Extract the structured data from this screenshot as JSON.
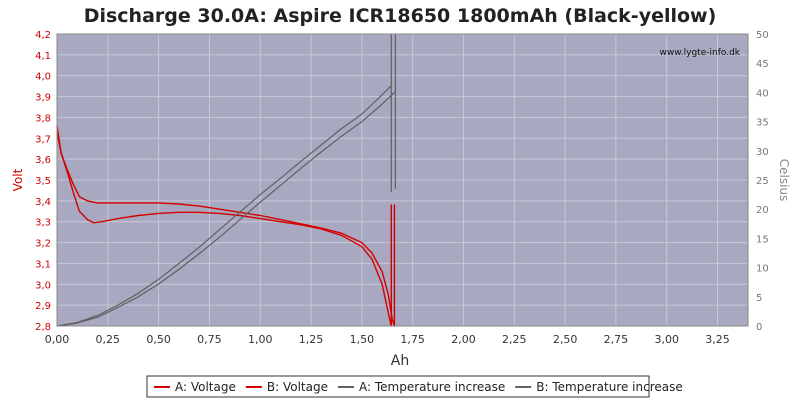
{
  "chart_data": {
    "type": "line",
    "title": "Discharge 30.0A: Aspire ICR18650 1800mAh (Black-yellow)",
    "watermark": "www.lygte-info.dk",
    "xlabel": "Ah",
    "ylabel_left": "Volt",
    "ylabel_right": "Celsius",
    "xlim": [
      0,
      3.4
    ],
    "ylim_left": [
      2.8,
      4.2
    ],
    "ylim_right": [
      0,
      50
    ],
    "x_ticks": [
      "0,00",
      "0,25",
      "0,50",
      "0,75",
      "1,00",
      "1,25",
      "1,50",
      "1,75",
      "2,00",
      "2,25",
      "2,50",
      "2,75",
      "3,00",
      "3,25"
    ],
    "y_left_ticks": [
      "2,8",
      "2,9",
      "3,0",
      "3,1",
      "3,2",
      "3,3",
      "3,4",
      "3,5",
      "3,6",
      "3,7",
      "3,8",
      "3,9",
      "4,0",
      "4,1",
      "4,2"
    ],
    "y_right_ticks": [
      "0",
      "5",
      "10",
      "15",
      "20",
      "25",
      "30",
      "35",
      "40",
      "45",
      "50"
    ],
    "grid": true,
    "legend_position": "bottom",
    "colors": {
      "plot_background": "#a8a8c0",
      "grid": "#c8c8d8",
      "voltage": "#d40000",
      "temperature": "#606060",
      "left_axis": "#cc0000",
      "right_axis": "#777777"
    },
    "series": [
      {
        "name": "A: Voltage",
        "axis": "left",
        "x": [
          0.0,
          0.02,
          0.05,
          0.08,
          0.11,
          0.15,
          0.18,
          0.22,
          0.3,
          0.4,
          0.5,
          0.6,
          0.7,
          0.8,
          0.9,
          1.0,
          1.1,
          1.2,
          1.3,
          1.4,
          1.5,
          1.55,
          1.6,
          1.62,
          1.64,
          1.645,
          1.645,
          1.645
        ],
        "y": [
          3.73,
          3.63,
          3.54,
          3.44,
          3.35,
          3.31,
          3.295,
          3.3,
          3.315,
          3.33,
          3.34,
          3.345,
          3.345,
          3.34,
          3.33,
          3.315,
          3.3,
          3.285,
          3.265,
          3.235,
          3.18,
          3.12,
          3.0,
          2.91,
          2.82,
          2.8,
          3.38,
          2.8
        ]
      },
      {
        "name": "B: Voltage",
        "axis": "left",
        "x": [
          0.0,
          0.02,
          0.05,
          0.08,
          0.11,
          0.15,
          0.2,
          0.3,
          0.4,
          0.5,
          0.6,
          0.7,
          0.8,
          0.9,
          1.0,
          1.1,
          1.2,
          1.3,
          1.4,
          1.5,
          1.55,
          1.6,
          1.63,
          1.65,
          1.66,
          1.66,
          1.66
        ],
        "y": [
          3.76,
          3.63,
          3.55,
          3.48,
          3.42,
          3.4,
          3.39,
          3.39,
          3.39,
          3.39,
          3.385,
          3.375,
          3.36,
          3.345,
          3.33,
          3.31,
          3.29,
          3.27,
          3.245,
          3.2,
          3.15,
          3.06,
          2.95,
          2.83,
          2.8,
          3.38,
          2.8
        ]
      },
      {
        "name": "A: Temperature increase",
        "axis": "right",
        "x": [
          0.0,
          0.1,
          0.2,
          0.3,
          0.4,
          0.5,
          0.6,
          0.7,
          0.8,
          0.9,
          1.0,
          1.1,
          1.2,
          1.3,
          1.4,
          1.5,
          1.6,
          1.64,
          1.645,
          1.645,
          1.645
        ],
        "y": [
          0.0,
          0.6,
          1.8,
          3.6,
          5.6,
          8.0,
          10.7,
          13.5,
          16.5,
          19.5,
          22.5,
          25.3,
          28.2,
          31.0,
          33.8,
          36.3,
          39.6,
          41.0,
          41.0,
          50.0,
          23.0
        ]
      },
      {
        "name": "B: Temperature increase",
        "axis": "right",
        "x": [
          0.0,
          0.1,
          0.2,
          0.3,
          0.4,
          0.5,
          0.6,
          0.7,
          0.8,
          0.9,
          1.0,
          1.1,
          1.2,
          1.3,
          1.4,
          1.5,
          1.6,
          1.66,
          1.665,
          1.665,
          1.665
        ],
        "y": [
          0.0,
          0.5,
          1.5,
          3.2,
          5.0,
          7.2,
          9.7,
          12.4,
          15.2,
          18.2,
          21.2,
          24.1,
          27.0,
          29.8,
          32.5,
          35.0,
          38.0,
          40.0,
          40.0,
          50.0,
          23.5
        ]
      }
    ]
  }
}
